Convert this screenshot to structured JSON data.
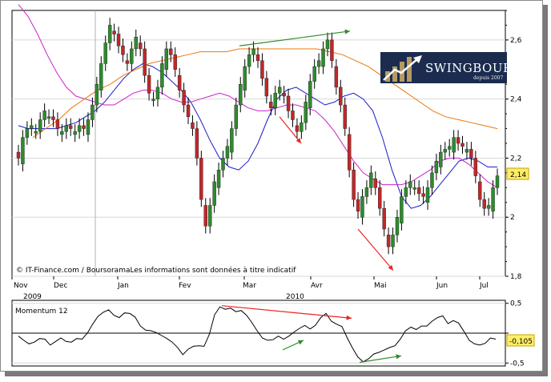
{
  "chart_data": [
    {
      "type": "candlestick",
      "title": "",
      "xlabel": "",
      "ylabel": "",
      "ylim": [
        1.8,
        2.7
      ],
      "y_ticks": [
        "1,8",
        "2",
        "2,2",
        "2,4",
        "2,6"
      ],
      "y_tick_values": [
        1.8,
        2.0,
        2.2,
        2.4,
        2.6
      ],
      "x_ticks": [
        "Nov",
        "Dec",
        "Jan",
        "Fev",
        "Mar",
        "Avr",
        "Mai",
        "Jun",
        "Jul"
      ],
      "x_year_labels": [
        "2009",
        "2010"
      ],
      "last_value_label": "2,14",
      "last_value": 2.14,
      "credit": "© IT-Finance.com / BoursoramaLes informations sont données à titre indicatif",
      "up_color": "#2e8b2e",
      "down_color": "#c0282b",
      "close_series": [
        2.2,
        2.27,
        2.3,
        2.31,
        2.29,
        2.33,
        2.36,
        2.34,
        2.33,
        2.3,
        2.29,
        2.31,
        2.3,
        2.29,
        2.31,
        2.3,
        2.33,
        2.38,
        2.45,
        2.52,
        2.59,
        2.65,
        2.62,
        2.58,
        2.55,
        2.52,
        2.57,
        2.61,
        2.57,
        2.48,
        2.42,
        2.4,
        2.44,
        2.52,
        2.57,
        2.55,
        2.5,
        2.43,
        2.38,
        2.34,
        2.3,
        2.2,
        2.06,
        1.97,
        2.04,
        2.12,
        2.16,
        2.2,
        2.24,
        2.3,
        2.38,
        2.45,
        2.51,
        2.55,
        2.57,
        2.53,
        2.47,
        2.41,
        2.37,
        2.42,
        2.44,
        2.41,
        2.36,
        2.33,
        2.29,
        2.32,
        2.39,
        2.46,
        2.51,
        2.53,
        2.57,
        2.6,
        2.53,
        2.44,
        2.38,
        2.3,
        2.16,
        2.06,
        2.02,
        2.07,
        2.1,
        2.15,
        2.1,
        2.03,
        1.96,
        1.9,
        1.94,
        2.0,
        2.07,
        2.1,
        2.12,
        2.1,
        2.08,
        2.07,
        2.1,
        2.15,
        2.19,
        2.22,
        2.23,
        2.24,
        2.27,
        2.25,
        2.24,
        2.23,
        2.2,
        2.14,
        2.06,
        2.03,
        2.04,
        2.1,
        2.14
      ],
      "series": [
        {
          "name": "",
          "color": "#1a1acc",
          "values": [
            2.31,
            2.3,
            2.3,
            2.3,
            2.3,
            2.31,
            2.32,
            2.34,
            2.36,
            2.39,
            2.43,
            2.47,
            2.5,
            2.52,
            2.51,
            2.49,
            2.46,
            2.43,
            2.39,
            2.33,
            2.26,
            2.2,
            2.17,
            2.16,
            2.19,
            2.25,
            2.33,
            2.4,
            2.43,
            2.44,
            2.42,
            2.4,
            2.38,
            2.39,
            2.41,
            2.42,
            2.4,
            2.36,
            2.27,
            2.16,
            2.07,
            2.03,
            2.04,
            2.07,
            2.11,
            2.15,
            2.19,
            2.2,
            2.19,
            2.17,
            2.17
          ]
        },
        {
          "name": "",
          "color": "#cc22cc",
          "values": [
            2.72,
            2.68,
            2.62,
            2.55,
            2.49,
            2.44,
            2.41,
            2.4,
            2.39,
            2.38,
            2.38,
            2.4,
            2.42,
            2.43,
            2.43,
            2.42,
            2.4,
            2.39,
            2.39,
            2.4,
            2.41,
            2.42,
            2.41,
            2.39,
            2.37,
            2.36,
            2.36,
            2.37,
            2.38,
            2.38,
            2.37,
            2.36,
            2.33,
            2.29,
            2.24,
            2.19,
            2.15,
            2.13,
            2.11,
            2.11,
            2.11,
            2.12,
            2.14,
            2.16,
            2.19,
            2.2,
            2.2,
            2.18,
            2.15,
            2.12,
            2.1
          ]
        },
        {
          "name": "",
          "color": "#e8780a",
          "values": [
            2.27,
            2.3,
            2.33,
            2.37,
            2.4,
            2.43,
            2.45,
            2.48,
            2.5,
            2.52,
            2.53,
            2.54,
            2.55,
            2.56,
            2.56,
            2.56,
            2.57,
            2.57,
            2.57,
            2.57,
            2.57,
            2.57,
            2.57,
            2.56,
            2.55,
            2.53,
            2.51,
            2.48,
            2.45,
            2.42,
            2.39,
            2.36,
            2.34,
            2.33,
            2.32,
            2.31,
            2.3
          ]
        }
      ],
      "trend_arrows": [
        {
          "color": "#2e8b2e",
          "from": [
            "Mar",
            2.58
          ],
          "to": [
            "Mai",
            2.63
          ]
        },
        {
          "color": "#ee2222",
          "from": [
            "Mar",
            2.34
          ],
          "to": [
            "Avr",
            2.25
          ]
        },
        {
          "color": "#ee2222",
          "from": [
            "Mai",
            1.96
          ],
          "to": [
            "Mai",
            1.82
          ]
        }
      ]
    },
    {
      "type": "line",
      "title": "Momentum 12",
      "ylim": [
        -0.55,
        0.55
      ],
      "y_ticks": [
        "0,5",
        "0",
        "-0,5"
      ],
      "y_tick_values": [
        0.5,
        0,
        -0.5
      ],
      "last_value_label": "-0,105",
      "last_value": -0.105,
      "series": [
        {
          "name": "Momentum 12",
          "color": "#000000",
          "values": [
            -0.05,
            -0.12,
            -0.18,
            -0.15,
            -0.09,
            -0.1,
            -0.2,
            -0.14,
            -0.08,
            -0.14,
            -0.15,
            -0.09,
            -0.1,
            0.0,
            0.15,
            0.28,
            0.35,
            0.39,
            0.3,
            0.26,
            0.34,
            0.33,
            0.27,
            0.12,
            0.05,
            0.04,
            0.01,
            -0.04,
            -0.09,
            -0.15,
            -0.24,
            -0.36,
            -0.27,
            -0.22,
            -0.21,
            -0.22,
            -0.02,
            0.31,
            0.44,
            0.4,
            0.42,
            0.36,
            0.38,
            0.3,
            0.18,
            0.04,
            -0.08,
            -0.12,
            -0.11,
            -0.05,
            -0.1,
            -0.05,
            0.02,
            0.08,
            0.13,
            0.07,
            0.13,
            0.26,
            0.33,
            0.2,
            0.15,
            0.11,
            -0.08,
            -0.25,
            -0.4,
            -0.48,
            -0.43,
            -0.35,
            -0.32,
            -0.28,
            -0.24,
            -0.21,
            -0.1,
            0.04,
            0.1,
            0.06,
            0.12,
            0.12,
            0.2,
            0.26,
            0.29,
            0.16,
            0.21,
            0.17,
            0.03,
            -0.12,
            -0.18,
            -0.2,
            -0.17,
            -0.08,
            -0.1
          ]
        }
      ],
      "trend_arrows": [
        {
          "color": "#ee2222",
          "from": [
            "Mar",
            0.46
          ],
          "to": [
            "Mai",
            0.25
          ]
        },
        {
          "color": "#2e8b2e",
          "from": [
            "Mar",
            -0.28
          ],
          "to": [
            "Avr",
            -0.12
          ]
        },
        {
          "color": "#2e8b2e",
          "from": [
            "Mai",
            -0.49
          ],
          "to": [
            "Jun",
            -0.38
          ]
        }
      ]
    }
  ],
  "logo": {
    "brand": "SWINGBOURSE",
    "tagline": "depuis 2007",
    "bg_color": "#1b2c4f",
    "bar_color": "#b79a62",
    "arrow_color": "#ffffff"
  }
}
